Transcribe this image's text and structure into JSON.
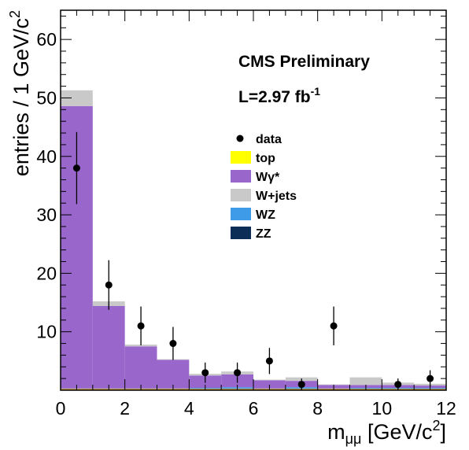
{
  "chart_data": {
    "type": "bar",
    "stacked": true,
    "histogram": true,
    "xlabel": "m",
    "xlabel_sub": "μμ",
    "xlabel_units": "[GeV/c",
    "xlabel_units_sup": "2",
    "xlabel_units_end": "]",
    "ylabel": "entries / 1 GeV/c",
    "ylabel_sup": "2",
    "xlim": [
      0,
      12
    ],
    "ylim": [
      0,
      65
    ],
    "x_ticks": [
      0,
      2,
      4,
      6,
      8,
      10,
      12
    ],
    "y_ticks": [
      10,
      20,
      30,
      40,
      50,
      60
    ],
    "bins": [
      [
        0,
        1
      ],
      [
        1,
        2
      ],
      [
        2,
        3
      ],
      [
        3,
        4
      ],
      [
        4,
        5
      ],
      [
        5,
        6
      ],
      [
        6,
        7
      ],
      [
        7,
        8
      ],
      [
        8,
        9
      ],
      [
        9,
        10
      ],
      [
        10,
        11
      ],
      [
        11,
        12
      ]
    ],
    "annotations": {
      "cms": "CMS Preliminary",
      "lumi_prefix": "L=2.97 fb",
      "lumi_sup": "-1"
    },
    "series": [
      {
        "name": "ZZ",
        "color": "#0d2f57",
        "values": [
          0.1,
          0.1,
          0.1,
          0.1,
          0.1,
          0.1,
          0.1,
          0.1,
          0.1,
          0.1,
          0.1,
          0.1
        ]
      },
      {
        "name": "WZ",
        "color": "#3d9be8",
        "values": [
          0.2,
          0.2,
          0.2,
          0.2,
          0.3,
          0.4,
          0.2,
          0.4,
          0.2,
          0.3,
          0.3,
          0.3
        ]
      },
      {
        "name": "Wγ*",
        "color": "#9966cc",
        "values": [
          48.3,
          14.1,
          7.2,
          4.9,
          2.1,
          2.2,
          1.4,
          1.1,
          0.6,
          0.5,
          0.5,
          0.4
        ]
      },
      {
        "name": "W+jets",
        "color": "#c9c9c9",
        "values": [
          2.7,
          0.8,
          0.3,
          0.1,
          0.3,
          0.5,
          0.1,
          0.6,
          0.1,
          1.3,
          0.4,
          0.3
        ]
      },
      {
        "name": "top",
        "color": "#ffff00",
        "values": [
          0,
          0,
          0,
          0,
          0,
          0,
          0,
          0,
          0,
          0,
          0,
          0
        ]
      }
    ],
    "data_points": {
      "name": "data",
      "x": [
        0.5,
        1.5,
        2.5,
        3.5,
        4.5,
        5.5,
        6.5,
        7.5,
        8.5,
        9.5,
        10.5,
        11.5
      ],
      "y": [
        38,
        18,
        11,
        8,
        3,
        3,
        5,
        1,
        11,
        0,
        1,
        2
      ]
    },
    "legend": [
      {
        "label": "data",
        "kind": "marker"
      },
      {
        "label": "top",
        "color": "#ffff00"
      },
      {
        "label": "Wγ*",
        "color": "#9966cc"
      },
      {
        "label": "W+jets",
        "color": "#c9c9c9"
      },
      {
        "label": "WZ",
        "color": "#3d9be8"
      },
      {
        "label": "ZZ",
        "color": "#0d2f57"
      }
    ]
  }
}
